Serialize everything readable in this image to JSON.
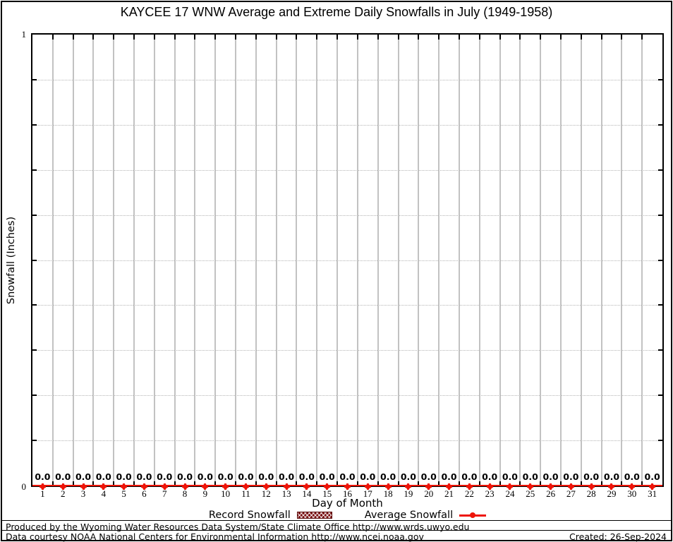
{
  "title": "KAYCEE 17 WNW Average and Extreme Daily Snowfalls in July (1949-1958)",
  "y_axis": {
    "label": "Snowfall (Inches)",
    "top_tick_label": "1",
    "bottom_tick_label": "0"
  },
  "x_axis": {
    "label": "Day of Month"
  },
  "chart_data": {
    "type": "line",
    "title": "KAYCEE 17 WNW Average and Extreme Daily Snowfalls in July (1949-1958)",
    "xlabel": "Day of Month",
    "ylabel": "Snowfall (Inches)",
    "x": [
      1,
      2,
      3,
      4,
      5,
      6,
      7,
      8,
      9,
      10,
      11,
      12,
      13,
      14,
      15,
      16,
      17,
      18,
      19,
      20,
      21,
      22,
      23,
      24,
      25,
      26,
      27,
      28,
      29,
      30,
      31
    ],
    "series": [
      {
        "name": "Record Snowfall",
        "style": "boxes",
        "color": "#7a1012",
        "values": [
          0,
          0,
          0,
          0,
          0,
          0,
          0,
          0,
          0,
          0,
          0,
          0,
          0,
          0,
          0,
          0,
          0,
          0,
          0,
          0,
          0,
          0,
          0,
          0,
          0,
          0,
          0,
          0,
          0,
          0,
          0
        ]
      },
      {
        "name": "Average Snowfall",
        "style": "line-points",
        "color": "#ee1509",
        "values": [
          0,
          0,
          0,
          0,
          0,
          0,
          0,
          0,
          0,
          0,
          0,
          0,
          0,
          0,
          0,
          0,
          0,
          0,
          0,
          0,
          0,
          0,
          0,
          0,
          0,
          0,
          0,
          0,
          0,
          0,
          0
        ]
      }
    ],
    "point_labels": [
      "0.0",
      "0.0",
      "0.0",
      "0.0",
      "0.0",
      "0.0",
      "0.0",
      "0.0",
      "0.0",
      "0.0",
      "0.0",
      "0.0",
      "0.0",
      "0.0",
      "0.0",
      "0.0",
      "0.0",
      "0.0",
      "0.0",
      "0.0",
      "0.0",
      "0.0",
      "0.0",
      "0.0",
      "0.0",
      "0.0",
      "0.0",
      "0.0",
      "0.0",
      "0.0",
      "0.0"
    ],
    "ylim": [
      0,
      1
    ],
    "ytick_interval": 0.1,
    "ytick_labels_shown": [
      "0",
      "1"
    ],
    "grid": true,
    "legend_position": "bottom"
  },
  "legend": {
    "items": [
      {
        "label": "Record Snowfall",
        "swatch": "hatched-box"
      },
      {
        "label": "Average Snowfall",
        "swatch": "line-marker"
      }
    ]
  },
  "footer": {
    "line1": "Produced by the Wyoming Water Resources Data System/State Climate Office http://www.wrds.uwyo.edu",
    "line2": "Data courtesy NOAA National Centers for Environmental Information http://www.ncei.noaa.gov",
    "created": "Created: 26-Sep-2024"
  },
  "colors": {
    "line_red": "#ee1509",
    "record_fill": "#7a1012",
    "record_border": "#5a0a0a",
    "grid_vertical": "#c2c2c2",
    "grid_dotted": "#b4b4b4",
    "axis_black": "#000000"
  }
}
